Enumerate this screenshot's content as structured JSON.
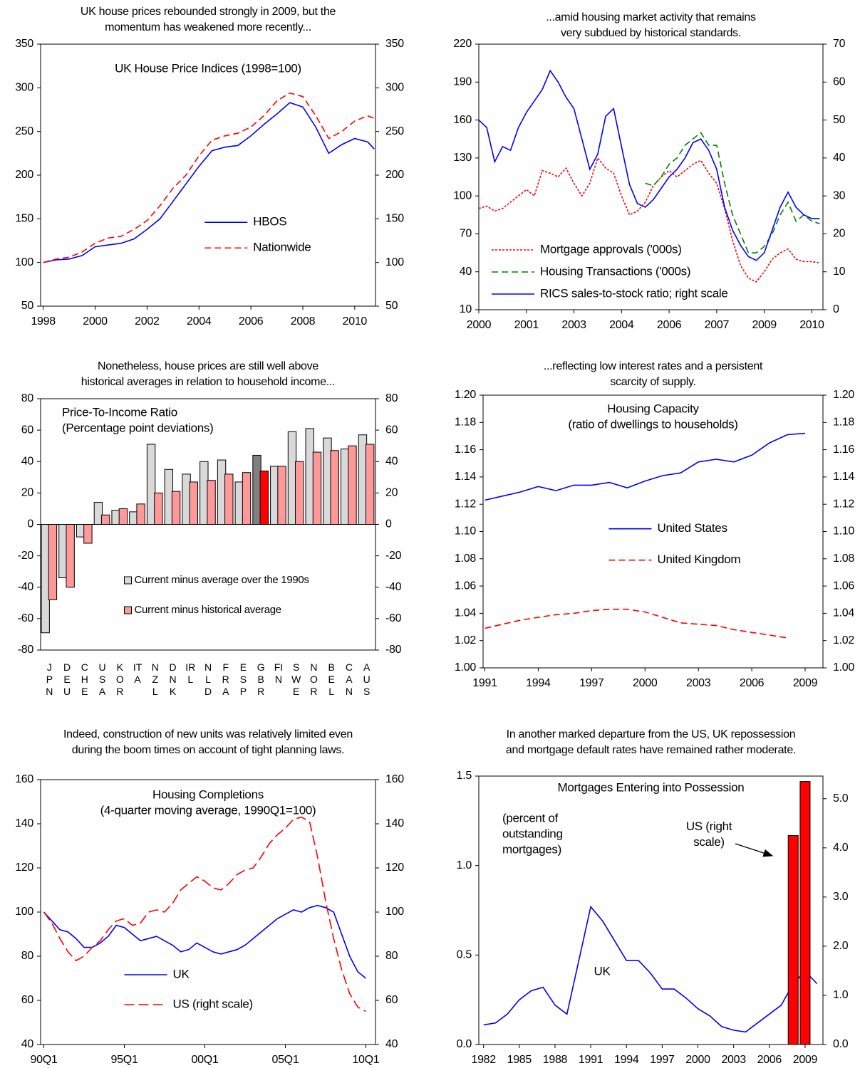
{
  "chart_data": [
    {
      "type": "line",
      "title": [
        "UK house prices rebounded strongly in 2009, but the",
        "momentum has weakened more recently..."
      ],
      "subtitle": [
        "UK House Price Indices (1998=100)"
      ],
      "x": [
        1998,
        1998.5,
        1999,
        1999.5,
        2000,
        2000.5,
        2001,
        2001.5,
        2002,
        2002.5,
        2003,
        2003.5,
        2004,
        2004.5,
        2005,
        2005.5,
        2006,
        2006.5,
        2007,
        2007.5,
        2008,
        2008.5,
        2009,
        2009.5,
        2010,
        2010.5,
        2010.75
      ],
      "xlim": [
        1997.9,
        2010.8
      ],
      "xticks": [
        1998,
        2000,
        2002,
        2004,
        2006,
        2008,
        2010
      ],
      "ylim": [
        50,
        350
      ],
      "yticks": [
        50,
        100,
        150,
        200,
        250,
        300,
        350
      ],
      "y2lim": [
        50,
        350
      ],
      "y2ticks": [
        50,
        100,
        150,
        200,
        250,
        300,
        350
      ],
      "legend": "center right",
      "series": [
        {
          "name": "HBOS",
          "color": "#0000ff",
          "dash": "solid",
          "values": [
            100,
            103,
            104,
            108,
            118,
            120,
            122,
            127,
            138,
            150,
            170,
            190,
            210,
            228,
            232,
            234,
            245,
            258,
            270,
            283,
            278,
            255,
            225,
            235,
            242,
            238,
            230
          ]
        },
        {
          "name": "Nationwide",
          "color": "#ff0000",
          "dash": "dashed",
          "values": [
            100,
            104,
            106,
            112,
            122,
            128,
            130,
            138,
            148,
            165,
            185,
            200,
            222,
            240,
            245,
            248,
            255,
            268,
            285,
            294,
            290,
            268,
            242,
            250,
            262,
            268,
            265
          ]
        }
      ]
    },
    {
      "type": "line",
      "title": [
        "...amid housing market activity that remains",
        "very subdued by historical standards."
      ],
      "x": [
        2000,
        2000.25,
        2000.5,
        2000.75,
        2001,
        2001.25,
        2001.5,
        2001.75,
        2002,
        2002.25,
        2002.5,
        2002.75,
        2003,
        2003.25,
        2003.5,
        2003.75,
        2004,
        2004.25,
        2004.5,
        2004.75,
        2005,
        2005.25,
        2005.5,
        2005.75,
        2006,
        2006.25,
        2006.5,
        2006.75,
        2007,
        2007.25,
        2007.5,
        2007.75,
        2008,
        2008.25,
        2008.5,
        2008.75,
        2009,
        2009.25,
        2009.5,
        2009.75,
        2010,
        2010.25,
        2010.5,
        2010.75
      ],
      "xlim": [
        2000,
        2010.85
      ],
      "xticks": [
        2000,
        {
          "value": 2001.5,
          "label": "2001"
        },
        2003,
        {
          "value": 2004.5,
          "label": "2004"
        },
        2006,
        {
          "value": 2007.5,
          "label": "2007"
        },
        2009,
        {
          "value": 2010.5,
          "label": "2010"
        }
      ],
      "ylim": [
        10,
        220
      ],
      "yticks": [
        10,
        40,
        70,
        100,
        130,
        160,
        190,
        220
      ],
      "y2lim": [
        0,
        70
      ],
      "y2ticks": [
        0,
        10,
        20,
        30,
        40,
        50,
        60,
        70
      ],
      "legend": "lower left",
      "series": [
        {
          "name": "Mortgage approvals ('000s)",
          "color": "#ff0000",
          "dash": "dotted",
          "values": [
            90,
            92,
            88,
            90,
            95,
            100,
            105,
            100,
            120,
            118,
            115,
            122,
            110,
            100,
            110,
            130,
            122,
            118,
            100,
            85,
            88,
            95,
            108,
            115,
            120,
            115,
            120,
            125,
            128,
            118,
            110,
            90,
            65,
            45,
            35,
            32,
            40,
            50,
            55,
            58,
            50,
            48,
            48,
            47
          ]
        },
        {
          "name": "Housing Transactions ('000s)",
          "color": "#008000",
          "dash": "dashed",
          "values": [
            null,
            null,
            null,
            null,
            null,
            null,
            null,
            null,
            null,
            null,
            null,
            null,
            null,
            null,
            null,
            null,
            null,
            null,
            null,
            null,
            null,
            110,
            108,
            115,
            125,
            130,
            140,
            145,
            150,
            140,
            140,
            110,
            85,
            70,
            55,
            55,
            60,
            70,
            85,
            95,
            80,
            85,
            80,
            78
          ]
        },
        {
          "name": "RICS sales-to-stock ratio; right scale",
          "color": "#0000ff",
          "dash": "solid",
          "axis": "y2",
          "values": [
            50,
            48,
            39,
            43,
            42,
            48,
            52,
            55,
            58,
            63,
            60,
            56,
            53,
            45,
            37,
            41,
            51,
            53,
            43,
            33,
            28,
            27,
            29,
            32,
            35,
            37,
            40,
            44,
            45,
            42,
            37,
            27,
            21,
            17,
            14,
            13,
            15,
            21,
            27,
            31,
            27,
            25,
            24,
            24
          ]
        }
      ]
    },
    {
      "type": "bar",
      "title": [
        "Nonetheless, house prices are still well above",
        "historical averages in relation to household income..."
      ],
      "subtitle": [
        "Price-To-Income Ratio",
        "(Percentage point deviations)"
      ],
      "subtitle_align": "left",
      "categories": [
        "JPN",
        "DEU",
        "CHE",
        "USA",
        "KOR",
        "ITA",
        "NZL",
        "DNK",
        "IRL",
        "NLD",
        "FRA",
        "ESP",
        "GBR",
        "FIN",
        "SWE",
        "NOR",
        "BEL",
        "CAN",
        "AUS"
      ],
      "highlight": "GBR",
      "ylim": [
        -80,
        80
      ],
      "yticks": [
        -80,
        -60,
        -40,
        -20,
        0,
        20,
        40,
        60,
        80
      ],
      "y2lim": [
        -80,
        80
      ],
      "y2ticks": [
        -80,
        -60,
        -40,
        -20,
        0,
        20,
        40,
        60,
        80
      ],
      "legend": "lower center",
      "series": [
        {
          "name": "Current minus average over the 1990s",
          "color": "#d9d9d9",
          "highlight_color": "#808080",
          "values": [
            -69,
            -34,
            -8,
            14,
            9,
            8,
            51,
            35,
            32,
            40,
            41,
            27,
            44,
            37,
            59,
            61,
            55,
            48,
            57
          ]
        },
        {
          "name": "Current minus historical average",
          "color": "#ff9999",
          "highlight_color": "#ff0000",
          "values": [
            -48,
            -40,
            -12,
            6,
            10,
            13,
            20,
            21,
            27,
            28,
            32,
            33,
            34,
            37,
            40,
            46,
            47,
            50,
            51
          ]
        }
      ]
    },
    {
      "type": "line",
      "title": [
        "...reflecting low interest rates and a persistent",
        "scarcity of supply."
      ],
      "subtitle": [
        "Housing Capacity",
        "(ratio of dwellings to households)"
      ],
      "x": [
        1991,
        1992,
        1993,
        1994,
        1995,
        1996,
        1997,
        1998,
        1999,
        2000,
        2001,
        2002,
        2003,
        2004,
        2005,
        2006,
        2007,
        2008,
        2009
      ],
      "xlim": [
        1990.9,
        2010
      ],
      "xticks": [
        1991,
        1994,
        1997,
        2000,
        2003,
        2006,
        2009
      ],
      "ylim": [
        1.0,
        1.2
      ],
      "yticks": [
        {
          "value": 1.0,
          "label": "1.00"
        },
        {
          "value": 1.02,
          "label": "1.02"
        },
        {
          "value": 1.04,
          "label": "1.04"
        },
        {
          "value": 1.06,
          "label": "1.06"
        },
        {
          "value": 1.08,
          "label": "1.08"
        },
        {
          "value": 1.1,
          "label": "1.10"
        },
        {
          "value": 1.12,
          "label": "1.12"
        },
        {
          "value": 1.14,
          "label": "1.14"
        },
        {
          "value": 1.16,
          "label": "1.16"
        },
        {
          "value": 1.18,
          "label": "1.18"
        },
        {
          "value": 1.2,
          "label": "1.20"
        }
      ],
      "y2lim": [
        1.0,
        1.2
      ],
      "y2ticks": [
        {
          "value": 1.0,
          "label": "1.00"
        },
        {
          "value": 1.02,
          "label": "1.02"
        },
        {
          "value": 1.04,
          "label": "1.04"
        },
        {
          "value": 1.06,
          "label": "1.06"
        },
        {
          "value": 1.08,
          "label": "1.08"
        },
        {
          "value": 1.1,
          "label": "1.10"
        },
        {
          "value": 1.12,
          "label": "1.12"
        },
        {
          "value": 1.14,
          "label": "1.14"
        },
        {
          "value": 1.16,
          "label": "1.16"
        },
        {
          "value": 1.18,
          "label": "1.18"
        },
        {
          "value": 1.2,
          "label": "1.20"
        }
      ],
      "legend": "center",
      "series": [
        {
          "name": "United States",
          "color": "#0000ff",
          "dash": "solid",
          "values": [
            1.123,
            1.126,
            1.129,
            1.133,
            1.13,
            1.134,
            1.134,
            1.136,
            1.132,
            1.137,
            1.141,
            1.143,
            1.151,
            1.153,
            1.151,
            1.156,
            1.165,
            1.171,
            1.172
          ]
        },
        {
          "name": "United Kingdom",
          "color": "#ff0000",
          "dash": "dashed",
          "values": [
            1.029,
            1.032,
            1.035,
            1.037,
            1.039,
            1.04,
            1.042,
            1.043,
            1.043,
            1.041,
            1.037,
            1.033,
            1.032,
            1.031,
            1.028,
            1.026,
            1.024,
            1.022,
            null
          ]
        }
      ]
    },
    {
      "type": "line",
      "title": [
        "Indeed, construction of new units was relatively limited even",
        "during the boom times on account of tight planning laws."
      ],
      "subtitle": [
        "Housing Completions",
        "(4-quarter moving average, 1990Q1=100)"
      ],
      "x": [
        1990,
        1990.5,
        1991,
        1991.5,
        1992,
        1992.5,
        1993,
        1993.5,
        1994,
        1994.5,
        1995,
        1995.5,
        1996,
        1996.5,
        1997,
        1997.5,
        1998,
        1998.5,
        1999,
        1999.5,
        2000,
        2000.5,
        2001,
        2001.5,
        2002,
        2002.5,
        2003,
        2003.5,
        2004,
        2004.5,
        2005,
        2005.5,
        2006,
        2006.5,
        2007,
        2007.5,
        2008,
        2008.5,
        2009,
        2009.5,
        2010
      ],
      "xlim": [
        1989.8,
        2010.6
      ],
      "xticks": [
        {
          "value": 1990,
          "label": "90Q1"
        },
        {
          "value": 1995,
          "label": "95Q1"
        },
        {
          "value": 2000,
          "label": "00Q1"
        },
        {
          "value": 2005,
          "label": "05Q1"
        },
        {
          "value": 2010,
          "label": "10Q1"
        }
      ],
      "ylim": [
        40,
        160
      ],
      "yticks": [
        40,
        60,
        80,
        100,
        120,
        140,
        160
      ],
      "y2lim": [
        40,
        160
      ],
      "y2ticks": [
        40,
        60,
        80,
        100,
        120,
        140,
        160
      ],
      "legend": "lower center",
      "series": [
        {
          "name": "UK",
          "color": "#0000ff",
          "dash": "solid",
          "values": [
            100,
            96,
            92,
            91,
            88,
            84,
            84,
            86,
            89,
            94,
            93,
            90,
            87,
            88,
            89,
            87,
            85,
            82,
            83,
            86,
            84,
            82,
            81,
            82,
            83,
            85,
            88,
            91,
            94,
            97,
            99,
            101,
            100,
            102,
            103,
            102,
            100,
            90,
            80,
            73,
            70
          ]
        },
        {
          "name": "US (right scale)",
          "color": "#ff0000",
          "dash": "longdash",
          "axis": "y2",
          "values": [
            100,
            95,
            88,
            82,
            78,
            80,
            84,
            87,
            92,
            96,
            97,
            94,
            95,
            100,
            101,
            100,
            104,
            110,
            113,
            116,
            114,
            111,
            110,
            113,
            117,
            119,
            120,
            125,
            131,
            135,
            138,
            142,
            143,
            141,
            125,
            105,
            88,
            74,
            63,
            57,
            55
          ]
        }
      ]
    },
    {
      "type": "combo",
      "title": [
        "In another marked departure from the US, UK repossession",
        "and mortgage default rates have remained rather moderate."
      ],
      "subtitle": [
        "Mortgages Entering into Possession"
      ],
      "note": [
        "(percent of",
        "outstanding",
        "mortgages)"
      ],
      "x": [
        1982,
        1983,
        1984,
        1985,
        1986,
        1987,
        1988,
        1989,
        1990,
        1991,
        1992,
        1993,
        1994,
        1995,
        1996,
        1997,
        1998,
        1999,
        2000,
        2001,
        2002,
        2003,
        2004,
        2005,
        2006,
        2007,
        2008,
        2009,
        2010
      ],
      "xlim": [
        1981.6,
        2010.5
      ],
      "xticks": [
        1982,
        1985,
        1988,
        1991,
        1994,
        1997,
        2000,
        2003,
        2006,
        2009
      ],
      "ylim": [
        0,
        1.5
      ],
      "yticks": [
        {
          "value": 0,
          "label": "0.0"
        },
        0.5,
        {
          "value": 1,
          "label": "1.0"
        },
        1.5
      ],
      "y2lim": [
        0,
        5.46
      ],
      "y2ticks": [
        {
          "value": 0,
          "label": "0.0"
        },
        {
          "value": 1,
          "label": "1.0"
        },
        {
          "value": 2,
          "label": "2.0"
        },
        {
          "value": 3,
          "label": "3.0"
        },
        {
          "value": 4,
          "label": "4.0"
        },
        {
          "value": 5,
          "label": "5.0"
        }
      ],
      "series": [
        {
          "name": "UK",
          "type": "line",
          "color": "#0000ff",
          "dash": "solid",
          "values": [
            0.11,
            0.12,
            0.17,
            0.25,
            0.3,
            0.32,
            0.22,
            0.17,
            0.47,
            0.77,
            0.69,
            0.58,
            0.47,
            0.47,
            0.4,
            0.31,
            0.31,
            0.26,
            0.2,
            0.16,
            0.1,
            0.08,
            0.07,
            0.12,
            0.17,
            0.22,
            0.34,
            0.41,
            0.34
          ]
        },
        {
          "name": "US (right scale)",
          "type": "bar",
          "color": "#ff0000",
          "axis": "y2",
          "values": [
            null,
            null,
            null,
            null,
            null,
            null,
            null,
            null,
            null,
            null,
            null,
            null,
            null,
            null,
            null,
            null,
            null,
            null,
            null,
            null,
            null,
            null,
            null,
            null,
            null,
            null,
            4.25,
            5.35,
            null
          ]
        }
      ]
    }
  ]
}
